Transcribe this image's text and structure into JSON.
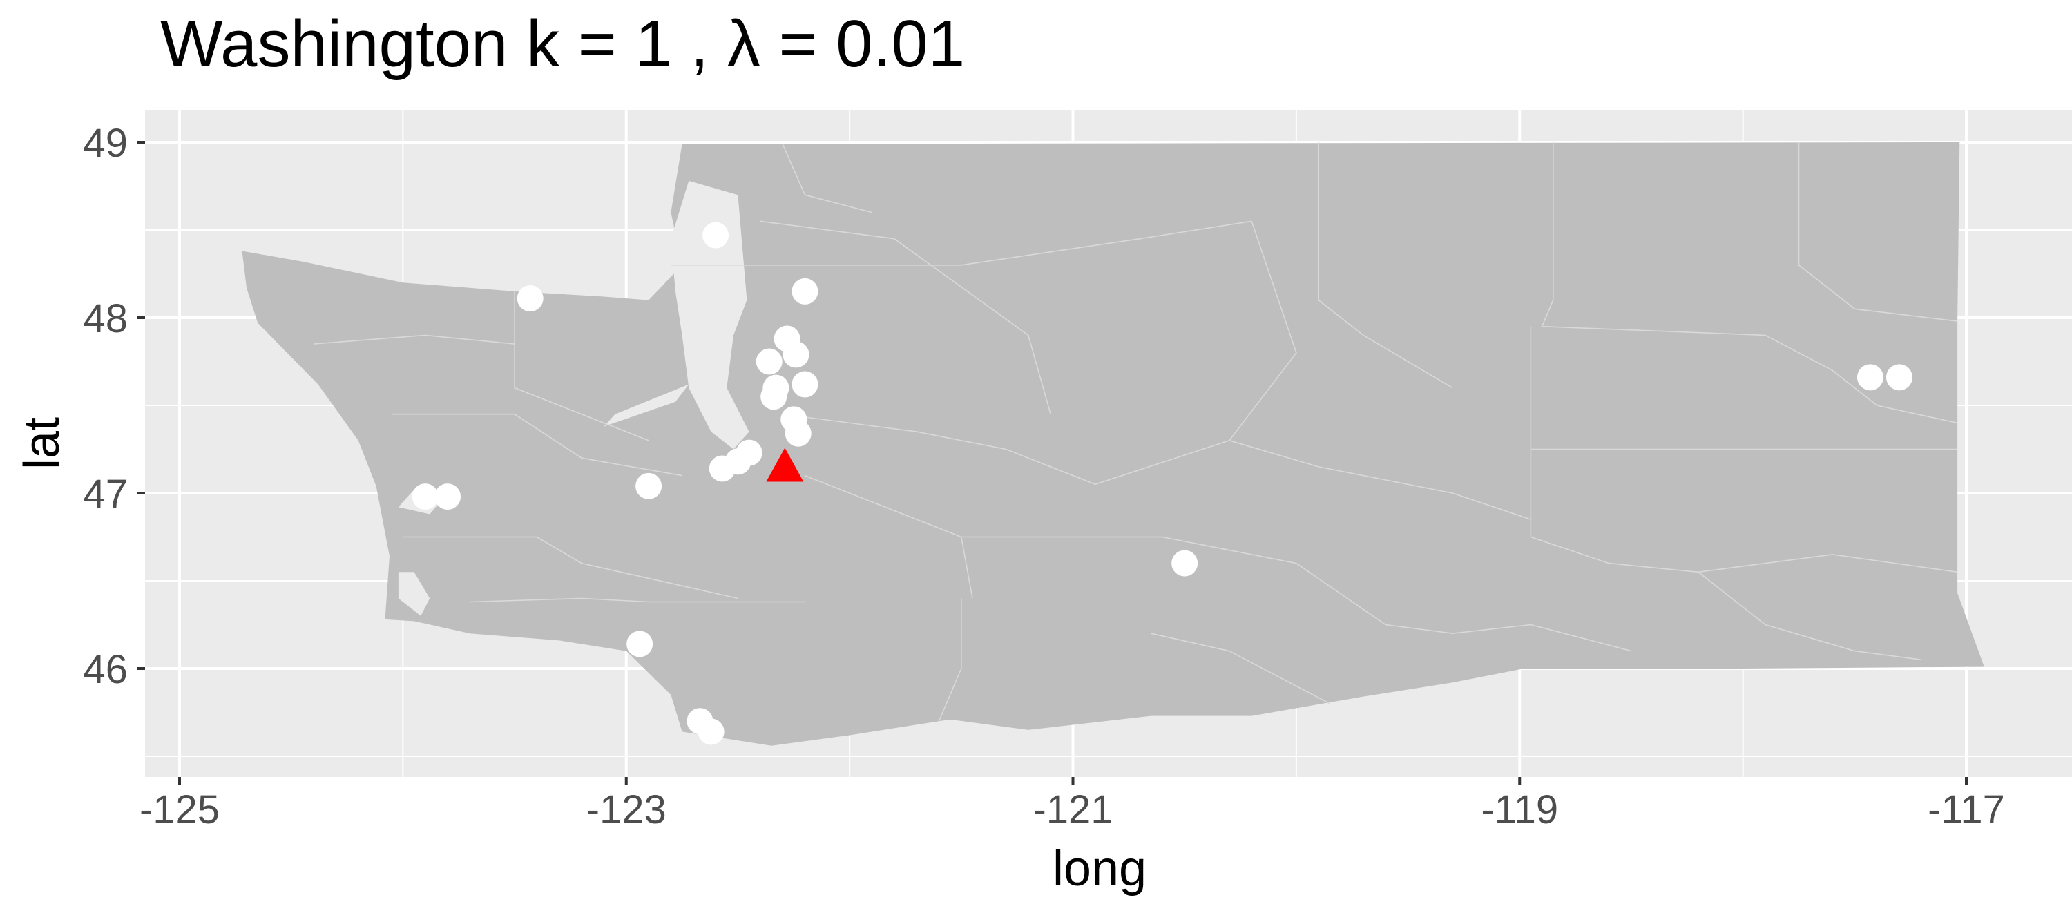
{
  "chart_data": {
    "type": "map-scatter",
    "title": "Washington  k =  1 ,  λ  =  0.01",
    "xlabel": "long",
    "ylabel": "lat",
    "xlim": [
      -125.2,
      -116.6
    ],
    "ylim": [
      45.4,
      49.1
    ],
    "x_ticks": [
      {
        "value": -125,
        "label": "-125"
      },
      {
        "value": -123,
        "label": "-123"
      },
      {
        "value": -121,
        "label": "-121"
      },
      {
        "value": -119,
        "label": "-119"
      },
      {
        "value": -117,
        "label": "-117"
      }
    ],
    "y_ticks": [
      {
        "value": 46,
        "label": "46"
      },
      {
        "value": 47,
        "label": "47"
      },
      {
        "value": 48,
        "label": "48"
      },
      {
        "value": 49,
        "label": "49"
      }
    ],
    "grid": true,
    "legend": "none",
    "colors": {
      "panel": "#ebebeb",
      "land": "#bebebe",
      "boundary": "#d9d9d9",
      "points": "#ffffff",
      "highlight": "#ff0000"
    },
    "state_outline": [
      [
        -122.75,
        48.99
      ],
      [
        -117.03,
        49.0
      ],
      [
        -117.04,
        47.98
      ],
      [
        -117.04,
        46.43
      ],
      [
        -116.92,
        46.01
      ],
      [
        -118.0,
        46.0
      ],
      [
        -118.98,
        46.0
      ],
      [
        -119.3,
        45.92
      ],
      [
        -119.7,
        45.84
      ],
      [
        -120.2,
        45.73
      ],
      [
        -120.65,
        45.73
      ],
      [
        -121.2,
        45.65
      ],
      [
        -121.55,
        45.71
      ],
      [
        -122.0,
        45.62
      ],
      [
        -122.35,
        45.56
      ],
      [
        -122.75,
        45.64
      ],
      [
        -122.8,
        45.85
      ],
      [
        -123.0,
        46.1
      ],
      [
        -123.3,
        46.16
      ],
      [
        -123.7,
        46.2
      ],
      [
        -123.95,
        46.27
      ],
      [
        -124.08,
        46.28
      ],
      [
        -124.06,
        46.64
      ],
      [
        -124.12,
        47.04
      ],
      [
        -124.2,
        47.3
      ],
      [
        -124.38,
        47.62
      ],
      [
        -124.65,
        47.97
      ],
      [
        -124.7,
        48.17
      ],
      [
        -124.72,
        48.38
      ],
      [
        -124.45,
        48.32
      ],
      [
        -124.0,
        48.2
      ],
      [
        -123.5,
        48.15
      ],
      [
        -123.1,
        48.12
      ],
      [
        -122.9,
        48.1
      ],
      [
        -122.75,
        48.3
      ],
      [
        -122.8,
        48.6
      ],
      [
        -122.75,
        48.99
      ]
    ],
    "water_areas": [
      [
        [
          -122.72,
          48.78
        ],
        [
          -122.5,
          48.7
        ],
        [
          -122.48,
          48.4
        ],
        [
          -122.46,
          48.1
        ],
        [
          -122.52,
          47.9
        ],
        [
          -122.55,
          47.6
        ],
        [
          -122.45,
          47.35
        ],
        [
          -122.52,
          47.25
        ],
        [
          -122.62,
          47.35
        ],
        [
          -122.72,
          47.6
        ],
        [
          -122.75,
          47.9
        ],
        [
          -122.78,
          48.15
        ],
        [
          -122.8,
          48.45
        ]
      ],
      [
        [
          -123.1,
          47.38
        ],
        [
          -122.78,
          47.52
        ],
        [
          -122.72,
          47.62
        ],
        [
          -123.05,
          47.45
        ]
      ],
      [
        [
          -124.02,
          46.92
        ],
        [
          -123.88,
          46.88
        ],
        [
          -123.82,
          46.97
        ],
        [
          -123.95,
          47.02
        ]
      ],
      [
        [
          -123.95,
          46.55
        ],
        [
          -123.88,
          46.4
        ],
        [
          -123.92,
          46.3
        ],
        [
          -124.02,
          46.4
        ],
        [
          -124.02,
          46.55
        ]
      ]
    ],
    "points": [
      {
        "long": -122.6,
        "lat": 48.47
      },
      {
        "long": -123.43,
        "lat": 48.11
      },
      {
        "long": -122.2,
        "lat": 48.15
      },
      {
        "long": -122.28,
        "lat": 47.88
      },
      {
        "long": -122.24,
        "lat": 47.79
      },
      {
        "long": -122.36,
        "lat": 47.75
      },
      {
        "long": -122.33,
        "lat": 47.6
      },
      {
        "long": -122.2,
        "lat": 47.62
      },
      {
        "long": -122.34,
        "lat": 47.55
      },
      {
        "long": -122.25,
        "lat": 47.42
      },
      {
        "long": -122.23,
        "lat": 47.34
      },
      {
        "long": -122.45,
        "lat": 47.23
      },
      {
        "long": -122.5,
        "lat": 47.18
      },
      {
        "long": -122.57,
        "lat": 47.14
      },
      {
        "long": -122.9,
        "lat": 47.04
      },
      {
        "long": -123.9,
        "lat": 46.98
      },
      {
        "long": -123.8,
        "lat": 46.98
      },
      {
        "long": -120.5,
        "lat": 46.6
      },
      {
        "long": -122.94,
        "lat": 46.14
      },
      {
        "long": -122.67,
        "lat": 45.7
      },
      {
        "long": -122.62,
        "lat": 45.64
      },
      {
        "long": -117.43,
        "lat": 47.66
      },
      {
        "long": -117.3,
        "lat": 47.66
      }
    ],
    "highlight_point": {
      "long": -122.29,
      "lat": 47.14,
      "shape": "triangle"
    }
  }
}
